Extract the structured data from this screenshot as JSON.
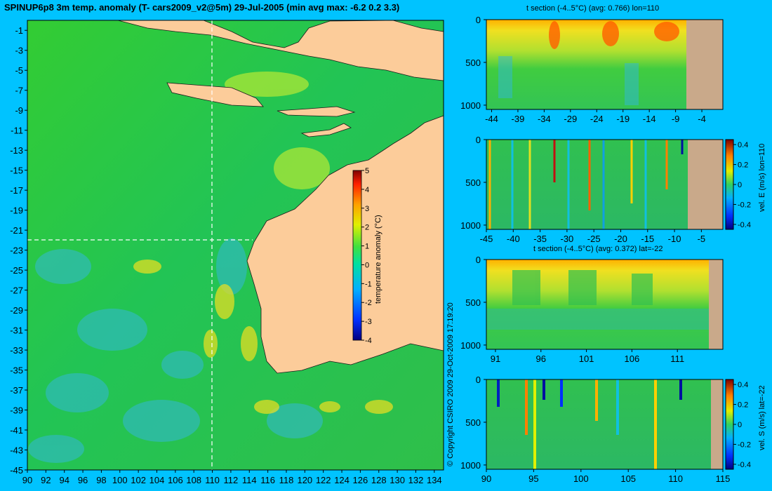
{
  "main_title": "SPINUP6p8 3m temp. anomaly (T- cars2009_v2@5m) 29-Jul-2005 (min avg max: -6.2 0.2 3.3)",
  "copyright": "© Copyright CSIRO 2009   29-Oct-2009 17:19:20",
  "colors": {
    "background": "#00c3ff",
    "land": "#fccc9a",
    "section_land": "#c9a98a"
  },
  "chart_data": [
    {
      "type": "heatmap",
      "name": "map",
      "title": "SPINUP6p8 3m temp. anomaly (T- cars2009_v2@5m) 29-Jul-2005 (min avg max: -6.2 0.2 3.3)",
      "x_ticks": [
        "90",
        "92",
        "94",
        "96",
        "98",
        "100",
        "102",
        "104",
        "106",
        "108",
        "110",
        "112",
        "114",
        "116",
        "118",
        "120",
        "122",
        "124",
        "126",
        "128",
        "130",
        "132",
        "134"
      ],
      "y_ticks": [
        "-1",
        "-3",
        "-5",
        "-7",
        "-9",
        "-11",
        "-13",
        "-15",
        "-17",
        "-19",
        "-21",
        "-23",
        "-25",
        "-27",
        "-29",
        "-31",
        "-33",
        "-35",
        "-37",
        "-39",
        "-41",
        "-43",
        "-45"
      ],
      "xlim": [
        90,
        135
      ],
      "ylim": [
        -45,
        0
      ],
      "crosshair_lon": 110,
      "crosshair_lat": -22,
      "colorbar": {
        "label": "temperature anomaly (°C)",
        "ticks": [
          "5",
          "4",
          "3",
          "2",
          "1",
          "0",
          "-1",
          "-2",
          "-3",
          "-4"
        ],
        "range": [
          -4,
          5
        ]
      }
    },
    {
      "type": "heatmap",
      "name": "t section lon=110",
      "title": "t section (-4..5°C) (avg: 0.766) lon=110",
      "x_ticks": [
        "-44",
        "-39",
        "-34",
        "-29",
        "-24",
        "-19",
        "-14",
        "-9",
        "-4"
      ],
      "y_ticks": [
        "0",
        "500",
        "1000"
      ],
      "xlim": [
        -45,
        0
      ],
      "ylim": [
        1050,
        0
      ]
    },
    {
      "type": "heatmap",
      "name": "vel E lon=110",
      "title": "",
      "x_ticks": [
        "-45",
        "-40",
        "-35",
        "-30",
        "-25",
        "-20",
        "-15",
        "-10",
        "-5"
      ],
      "y_ticks": [
        "0",
        "500",
        "1000"
      ],
      "xlim": [
        -45,
        -1
      ],
      "ylim": [
        1050,
        0
      ],
      "colorbar": {
        "label": "vel. E (m/s) lon=110",
        "ticks": [
          "0.4",
          "0.2",
          "0",
          "-0.2",
          "-0.4"
        ],
        "range": [
          -0.45,
          0.45
        ]
      }
    },
    {
      "type": "heatmap",
      "name": "t section lat=-22",
      "title": "t section (-4..5°C) (avg: 0.372) lat=-22",
      "x_ticks": [
        "91",
        "96",
        "101",
        "106",
        "111"
      ],
      "y_ticks": [
        "0",
        "500",
        "1000"
      ],
      "xlim": [
        90,
        116
      ],
      "ylim": [
        1050,
        0
      ]
    },
    {
      "type": "heatmap",
      "name": "vel S lat=-22",
      "title": "",
      "x_ticks": [
        "90",
        "95",
        "100",
        "105",
        "110",
        "115"
      ],
      "y_ticks": [
        "0",
        "500",
        "1000"
      ],
      "xlim": [
        90,
        115
      ],
      "ylim": [
        1050,
        0
      ],
      "colorbar": {
        "label": "vel. S (m/s) lat=-22",
        "ticks": [
          "0.4",
          "0.2",
          "0",
          "-0.2",
          "-0.4"
        ],
        "range": [
          -0.45,
          0.45
        ]
      }
    }
  ]
}
